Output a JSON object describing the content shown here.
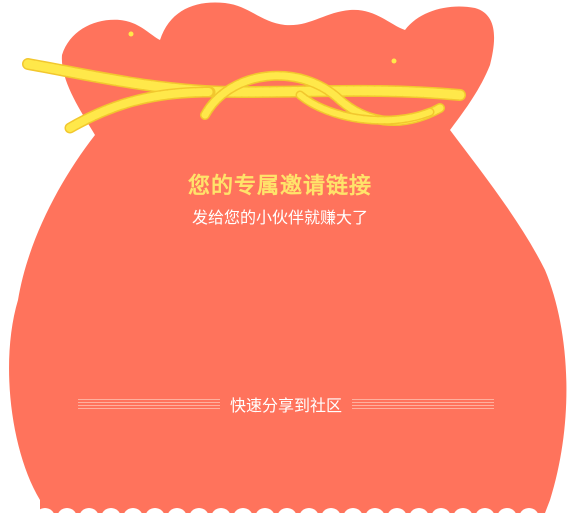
{
  "invite": {
    "title": "您的专属邀请链接",
    "subtitle": "发给您的小伙伴就赚大了",
    "share_label": "快速分享到社区"
  },
  "colors": {
    "bag": "#FF735C",
    "rope": "#FFE84A",
    "rope_shadow": "#F2C72E",
    "title": "#FFE36A",
    "text": "#FFFFFF",
    "stripe": "#FFB09E"
  },
  "icons": {
    "bag": "red-pouch-illustration",
    "rope": "yellow-rope-icon"
  }
}
